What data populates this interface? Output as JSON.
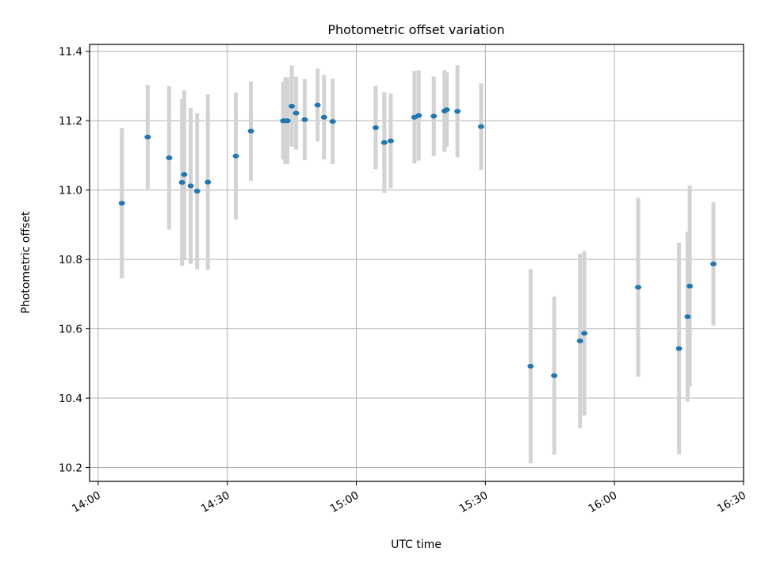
{
  "chart_data": {
    "type": "scatter",
    "title": "Photometric offset variation",
    "xlabel": "UTC time",
    "ylabel": "Photometric offset",
    "x_ticks": [
      "14:00",
      "14:30",
      "15:00",
      "15:30",
      "16:00",
      "16:30"
    ],
    "y_ticks": [
      "10.2",
      "10.4",
      "10.6",
      "10.8",
      "11.0",
      "11.2",
      "11.4"
    ],
    "xlim": [
      "13:58",
      "16:30"
    ],
    "ylim": [
      10.16,
      11.42
    ],
    "grid": true,
    "colors": {
      "points": "#1f77b4",
      "errorbars": "#d3d3d3",
      "grid": "#b0b0b0"
    },
    "points": [
      {
        "time": "14:05.5",
        "y": 10.962,
        "yerr": 0.217
      },
      {
        "time": "14:11.5",
        "y": 11.153,
        "yerr": 0.15
      },
      {
        "time": "14:16.5",
        "y": 11.093,
        "yerr": 0.207
      },
      {
        "time": "14:19.5",
        "y": 11.022,
        "yerr": 0.24
      },
      {
        "time": "14:20.0",
        "y": 11.045,
        "yerr": 0.243
      },
      {
        "time": "14:21.5",
        "y": 11.012,
        "yerr": 0.225
      },
      {
        "time": "14:23.0",
        "y": 10.997,
        "yerr": 0.225
      },
      {
        "time": "14:25.5",
        "y": 11.023,
        "yerr": 0.253
      },
      {
        "time": "14:32.0",
        "y": 11.098,
        "yerr": 0.183
      },
      {
        "time": "14:35.5",
        "y": 11.17,
        "yerr": 0.143
      },
      {
        "time": "14:43.0",
        "y": 11.2,
        "yerr": 0.112
      },
      {
        "time": "14:43.5",
        "y": 11.2,
        "yerr": 0.125
      },
      {
        "time": "14:44.0",
        "y": 11.2,
        "yerr": 0.125
      },
      {
        "time": "14:45.0",
        "y": 11.242,
        "yerr": 0.117
      },
      {
        "time": "14:46.0",
        "y": 11.222,
        "yerr": 0.105
      },
      {
        "time": "14:48.0",
        "y": 11.203,
        "yerr": 0.117
      },
      {
        "time": "14:51.0",
        "y": 11.245,
        "yerr": 0.105
      },
      {
        "time": "14:52.5",
        "y": 11.21,
        "yerr": 0.122
      },
      {
        "time": "14:54.5",
        "y": 11.198,
        "yerr": 0.123
      },
      {
        "time": "15:04.5",
        "y": 11.18,
        "yerr": 0.12
      },
      {
        "time": "15:06.5",
        "y": 11.137,
        "yerr": 0.145
      },
      {
        "time": "15:08.0",
        "y": 11.142,
        "yerr": 0.137
      },
      {
        "time": "15:13.5",
        "y": 11.21,
        "yerr": 0.133
      },
      {
        "time": "15:14.5",
        "y": 11.215,
        "yerr": 0.13
      },
      {
        "time": "15:18.0",
        "y": 11.213,
        "yerr": 0.115
      },
      {
        "time": "15:20.5",
        "y": 11.228,
        "yerr": 0.118
      },
      {
        "time": "15:21.0",
        "y": 11.232,
        "yerr": 0.107
      },
      {
        "time": "15:23.5",
        "y": 11.227,
        "yerr": 0.133
      },
      {
        "time": "15:29.0",
        "y": 11.183,
        "yerr": 0.125
      },
      {
        "time": "15:40.5",
        "y": 10.492,
        "yerr": 0.28
      },
      {
        "time": "15:46.0",
        "y": 10.465,
        "yerr": 0.228
      },
      {
        "time": "15:52.0",
        "y": 10.565,
        "yerr": 0.252
      },
      {
        "time": "15:53.0",
        "y": 10.587,
        "yerr": 0.237
      },
      {
        "time": "16:05.5",
        "y": 10.72,
        "yerr": 0.258
      },
      {
        "time": "16:15.0",
        "y": 10.543,
        "yerr": 0.305
      },
      {
        "time": "16:17.0",
        "y": 10.635,
        "yerr": 0.245
      },
      {
        "time": "16:17.5",
        "y": 10.723,
        "yerr": 0.29
      },
      {
        "time": "16:23.0",
        "y": 10.787,
        "yerr": 0.178
      }
    ]
  }
}
